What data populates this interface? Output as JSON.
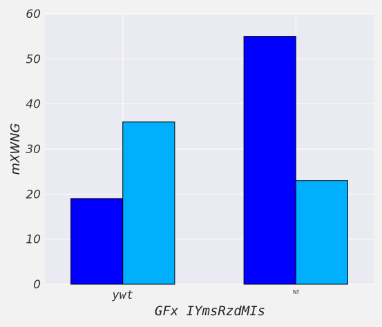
{
  "chart_data": {
    "type": "bar",
    "categories": [
      "ywt",
      "Nf"
    ],
    "series": [
      {
        "values": [
          19,
          55
        ],
        "color": "#0000ff"
      },
      {
        "values": [
          36,
          23
        ],
        "color": "#00b0ff"
      }
    ],
    "title": "",
    "xlabel": "GFx IYmsRzdMIs",
    "ylabel": "mXWNG",
    "ylim": [
      0,
      60
    ],
    "yticks": [
      0,
      10,
      20,
      30,
      40,
      50,
      60
    ],
    "grid": true,
    "plot_background": "#eaeaf2"
  }
}
